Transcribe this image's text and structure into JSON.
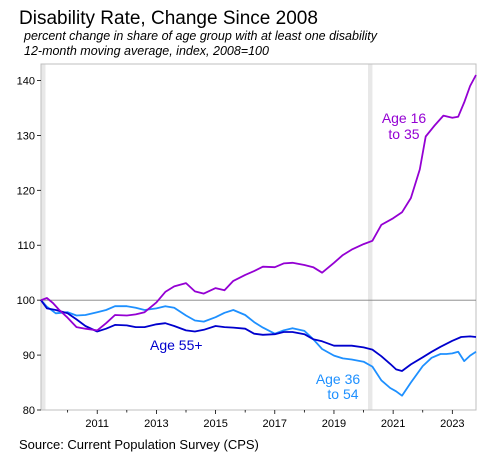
{
  "title": "Disability Rate, Change Since 2008",
  "subtitle_line1": "percent change in share of age group with at least one disability",
  "subtitle_line2": "12-month moving average, index, 2008=100",
  "source": "Source: Current Population Survey (CPS)",
  "chart_data": {
    "type": "line",
    "title": "Disability Rate, Change Since 2008",
    "xlabel": "",
    "ylabel": "",
    "xlim": [
      2009.1,
      2023.8
    ],
    "ylim": [
      80,
      143
    ],
    "x_ticks": [
      2011,
      2013,
      2015,
      2017,
      2019,
      2021,
      2023
    ],
    "x_tick_labels": [
      "2011",
      "2013",
      "2015",
      "2017",
      "2019",
      "2021",
      "2023"
    ],
    "y_ticks": [
      80,
      90,
      100,
      110,
      120,
      130,
      140
    ],
    "y_tick_labels": [
      "80",
      "90",
      "100",
      "110",
      "120",
      "130",
      "140"
    ],
    "reference_line": 100,
    "shaded_bands": [
      [
        2009.1,
        2009.25
      ],
      [
        2020.15,
        2020.3
      ]
    ],
    "grid": false,
    "legend": "none (direct labels)",
    "series": [
      {
        "name": "Age 16 to 35",
        "label_lines": [
          "Age 16",
          "to 35"
        ],
        "color": "#9400d3",
        "x": [
          2009.1,
          2009.3,
          2009.5,
          2009.7,
          2010.0,
          2010.3,
          2010.6,
          2011.0,
          2011.3,
          2011.6,
          2012.0,
          2012.3,
          2012.6,
          2013.0,
          2013.3,
          2013.6,
          2014.0,
          2014.3,
          2014.6,
          2015.0,
          2015.3,
          2015.6,
          2016.0,
          2016.3,
          2016.6,
          2017.0,
          2017.3,
          2017.6,
          2018.0,
          2018.3,
          2018.6,
          2019.0,
          2019.3,
          2019.6,
          2020.0,
          2020.3,
          2020.6,
          2021.0,
          2021.3,
          2021.6,
          2021.9,
          2022.1,
          2022.4,
          2022.7,
          2023.0,
          2023.2,
          2023.4,
          2023.6,
          2023.8
        ],
        "y": [
          100,
          100.4,
          99.5,
          98.3,
          96.8,
          95.1,
          94.8,
          94.5,
          95.8,
          97.3,
          97.2,
          97.4,
          97.8,
          99.6,
          101.5,
          102.5,
          103.1,
          101.6,
          101.2,
          102.2,
          101.8,
          103.5,
          104.6,
          105.3,
          106.1,
          106.0,
          106.7,
          106.8,
          106.4,
          106.0,
          105.0,
          106.8,
          108.2,
          109.2,
          110.2,
          110.8,
          113.7,
          114.9,
          116.0,
          118.6,
          123.8,
          129.8,
          131.8,
          133.6,
          133.2,
          133.4,
          136.0,
          139.0,
          141.0
        ]
      },
      {
        "name": "Age 36 to 54",
        "label_lines": [
          "Age 36",
          "to 54"
        ],
        "color": "#1e90ff",
        "x": [
          2009.1,
          2009.3,
          2009.6,
          2010.0,
          2010.3,
          2010.6,
          2011.0,
          2011.3,
          2011.6,
          2012.0,
          2012.3,
          2012.6,
          2013.0,
          2013.3,
          2013.6,
          2014.0,
          2014.3,
          2014.6,
          2015.0,
          2015.3,
          2015.6,
          2016.0,
          2016.3,
          2016.6,
          2017.0,
          2017.3,
          2017.6,
          2018.0,
          2018.3,
          2018.6,
          2019.0,
          2019.3,
          2019.6,
          2020.0,
          2020.3,
          2020.6,
          2020.9,
          2021.1,
          2021.3,
          2021.6,
          2022.0,
          2022.3,
          2022.6,
          2022.8,
          2023.0,
          2023.2,
          2023.4,
          2023.6,
          2023.8
        ],
        "y": [
          100,
          98.8,
          97.6,
          97.8,
          97.2,
          97.3,
          97.8,
          98.2,
          98.9,
          98.9,
          98.6,
          98.2,
          98.5,
          98.9,
          98.6,
          97.2,
          96.3,
          96.1,
          96.9,
          97.7,
          98.2,
          97.3,
          96.0,
          95.0,
          93.9,
          94.5,
          94.9,
          94.4,
          92.9,
          91.1,
          89.9,
          89.4,
          89.2,
          88.8,
          87.9,
          85.4,
          84.0,
          83.4,
          82.6,
          85.0,
          88.0,
          89.5,
          90.2,
          90.2,
          90.3,
          90.6,
          88.9,
          89.9,
          90.6
        ]
      },
      {
        "name": "Age 55+",
        "label_lines": [
          "Age 55+"
        ],
        "color": "#0000cd",
        "x": [
          2009.1,
          2009.3,
          2009.6,
          2010.0,
          2010.3,
          2010.6,
          2011.0,
          2011.3,
          2011.6,
          2012.0,
          2012.3,
          2012.6,
          2013.0,
          2013.3,
          2013.6,
          2014.0,
          2014.3,
          2014.6,
          2015.0,
          2015.3,
          2015.6,
          2016.0,
          2016.3,
          2016.6,
          2017.0,
          2017.3,
          2017.6,
          2018.0,
          2018.3,
          2018.6,
          2019.0,
          2019.3,
          2019.6,
          2020.0,
          2020.3,
          2020.6,
          2020.9,
          2021.1,
          2021.3,
          2021.6,
          2022.0,
          2022.3,
          2022.6,
          2023.0,
          2023.3,
          2023.6,
          2023.8
        ],
        "y": [
          100,
          98.5,
          98.2,
          97.6,
          96.5,
          95.3,
          94.3,
          94.8,
          95.5,
          95.4,
          95.1,
          95.1,
          95.6,
          95.8,
          95.3,
          94.5,
          94.3,
          94.6,
          95.3,
          95.1,
          95.0,
          94.8,
          93.9,
          93.7,
          93.8,
          94.2,
          94.2,
          93.8,
          92.9,
          92.5,
          91.7,
          91.7,
          91.7,
          91.4,
          91.0,
          89.8,
          88.4,
          87.4,
          87.1,
          88.3,
          89.6,
          90.6,
          91.5,
          92.6,
          93.3,
          93.4,
          93.3
        ]
      }
    ],
    "annotations": [
      "Age 16\nto 35",
      "Age 55+",
      "Age 36\nto 54"
    ]
  }
}
